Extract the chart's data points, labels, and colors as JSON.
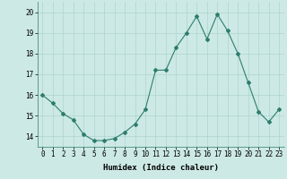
{
  "x": [
    0,
    1,
    2,
    3,
    4,
    5,
    6,
    7,
    8,
    9,
    10,
    11,
    12,
    13,
    14,
    15,
    16,
    17,
    18,
    19,
    20,
    21,
    22,
    23
  ],
  "y": [
    16.0,
    15.6,
    15.1,
    14.8,
    14.1,
    13.8,
    13.8,
    13.9,
    14.2,
    14.6,
    15.3,
    17.2,
    17.2,
    18.3,
    19.0,
    19.8,
    18.7,
    19.9,
    19.1,
    18.0,
    16.6,
    15.2,
    14.7,
    15.3
  ],
  "line_color": "#2e7d6e",
  "marker": "D",
  "marker_size": 2,
  "bg_color": "#cce9e5",
  "grid_color": "#afd4cf",
  "xlabel": "Humidex (Indice chaleur)",
  "ylim": [
    13.5,
    20.5
  ],
  "xlim": [
    -0.5,
    23.5
  ],
  "yticks": [
    14,
    15,
    16,
    17,
    18,
    19,
    20
  ],
  "xticks": [
    0,
    1,
    2,
    3,
    4,
    5,
    6,
    7,
    8,
    9,
    10,
    11,
    12,
    13,
    14,
    15,
    16,
    17,
    18,
    19,
    20,
    21,
    22,
    23
  ],
  "xlabel_fontsize": 6.5,
  "tick_fontsize": 5.5,
  "linewidth": 0.8
}
